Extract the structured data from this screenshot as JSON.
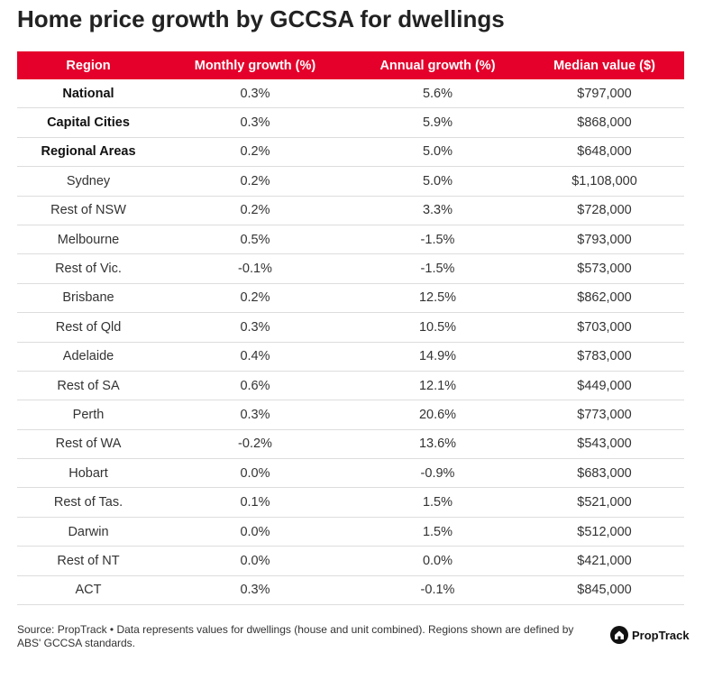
{
  "header": {
    "title": "Home price growth by GCCSA for dwellings"
  },
  "table": {
    "columns": [
      "Region",
      "Monthly growth (%)",
      "Annual growth (%)",
      "Median value ($)"
    ],
    "rows": [
      [
        "National",
        "0.3%",
        "5.6%",
        "$797,000"
      ],
      [
        "Capital Cities",
        "0.3%",
        "5.9%",
        "$868,000"
      ],
      [
        "Regional Areas",
        "0.2%",
        "5.0%",
        "$648,000"
      ],
      [
        "Sydney",
        "0.2%",
        "5.0%",
        "$1,108,000"
      ],
      [
        "Rest of NSW",
        "0.2%",
        "3.3%",
        "$728,000"
      ],
      [
        "Melbourne",
        "0.5%",
        "-1.5%",
        "$793,000"
      ],
      [
        "Rest of Vic.",
        "-0.1%",
        "-1.5%",
        "$573,000"
      ],
      [
        "Brisbane",
        "0.2%",
        "12.5%",
        "$862,000"
      ],
      [
        "Rest of Qld",
        "0.3%",
        "10.5%",
        "$703,000"
      ],
      [
        "Adelaide",
        "0.4%",
        "14.9%",
        "$783,000"
      ],
      [
        "Rest of SA",
        "0.6%",
        "12.1%",
        "$449,000"
      ],
      [
        "Perth",
        "0.3%",
        "20.6%",
        "$773,000"
      ],
      [
        "Rest of WA",
        "-0.2%",
        "13.6%",
        "$543,000"
      ],
      [
        "Hobart",
        "0.0%",
        "-0.9%",
        "$683,000"
      ],
      [
        "Rest of Tas.",
        "0.1%",
        "1.5%",
        "$521,000"
      ],
      [
        "Darwin",
        "0.0%",
        "1.5%",
        "$512,000"
      ],
      [
        "Rest of NT",
        "0.0%",
        "0.0%",
        "$421,000"
      ],
      [
        "ACT",
        "0.3%",
        "-0.1%",
        "$845,000"
      ]
    ]
  },
  "footer": {
    "source": "Source: PropTrack • Data represents values for dwellings (house and unit combined). Regions shown are defined by ABS' GCCSA standards.",
    "logo": "PropTrack"
  }
}
